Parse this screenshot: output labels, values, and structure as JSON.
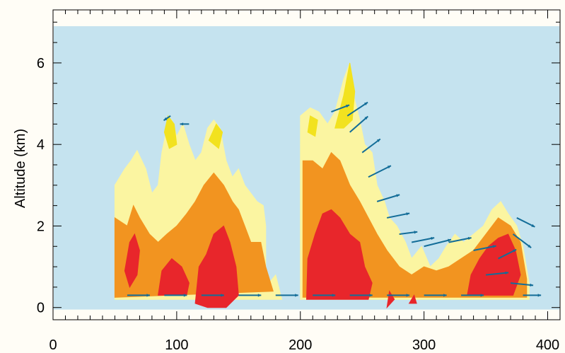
{
  "chart_data": {
    "type": "contour-vector",
    "title": "",
    "xlabel": "",
    "ylabel": "Altitude (km)",
    "xlim": [
      0,
      410
    ],
    "ylim": [
      -0.3,
      7.3
    ],
    "xticks": [
      0,
      100,
      200,
      300,
      400
    ],
    "xtick_labels": [
      "0",
      "100",
      "200",
      "300",
      "400"
    ],
    "yticks": [
      0,
      2,
      4,
      6
    ],
    "ytick_labels": [
      "0",
      "2",
      "4",
      "6"
    ],
    "grid": false,
    "colors": {
      "background": "#c5e3ef",
      "level_1": "#fbf5a1",
      "level_2": "#f2e21f",
      "level_3": "#f29420",
      "level_4": "#e8262b",
      "arrows": "#136d98"
    },
    "contour_regions": [
      {
        "level": "level_1",
        "polygons": [
          [
            [
              50,
              0.2
            ],
            [
              50,
              3.0
            ],
            [
              58,
              3.4
            ],
            [
              63,
              3.6
            ],
            [
              68,
              3.85
            ],
            [
              75,
              3.4
            ],
            [
              80,
              2.8
            ],
            [
              85,
              3.0
            ],
            [
              88,
              3.8
            ],
            [
              92,
              4.4
            ],
            [
              96,
              4.6
            ],
            [
              100,
              4.2
            ],
            [
              105,
              4.5
            ],
            [
              110,
              4.0
            ],
            [
              115,
              3.6
            ],
            [
              120,
              3.8
            ],
            [
              125,
              4.4
            ],
            [
              130,
              4.6
            ],
            [
              135,
              4.4
            ],
            [
              140,
              3.6
            ],
            [
              145,
              3.2
            ],
            [
              150,
              3.4
            ],
            [
              155,
              3.0
            ],
            [
              160,
              2.8
            ],
            [
              165,
              2.6
            ],
            [
              170,
              2.5
            ],
            [
              172,
              2.0
            ],
            [
              172,
              0.5
            ],
            [
              180,
              0.8
            ],
            [
              185,
              0.2
            ]
          ],
          [
            [
              200,
              0.2
            ],
            [
              200,
              4.7
            ],
            [
              208,
              4.9
            ],
            [
              215,
              4.8
            ],
            [
              222,
              4.5
            ],
            [
              228,
              4.8
            ],
            [
              235,
              5.6
            ],
            [
              240,
              6.0
            ],
            [
              243,
              5.2
            ],
            [
              248,
              4.6
            ],
            [
              252,
              4.0
            ],
            [
              258,
              3.8
            ],
            [
              262,
              3.0
            ],
            [
              268,
              2.6
            ],
            [
              272,
              2.2
            ],
            [
              278,
              2.0
            ],
            [
              285,
              1.6
            ],
            [
              290,
              1.2
            ],
            [
              298,
              1.5
            ],
            [
              305,
              1.0
            ],
            [
              312,
              1.2
            ],
            [
              318,
              1.5
            ],
            [
              325,
              1.8
            ],
            [
              332,
              1.6
            ],
            [
              340,
              1.8
            ],
            [
              348,
              2.0
            ],
            [
              355,
              2.4
            ],
            [
              362,
              2.6
            ],
            [
              368,
              2.3
            ],
            [
              375,
              2.0
            ],
            [
              380,
              1.5
            ],
            [
              385,
              0.6
            ],
            [
              385,
              0.2
            ]
          ]
        ]
      },
      {
        "level": "level_2",
        "polygons": [
          [
            [
              90,
              4.3
            ],
            [
              93,
              4.7
            ],
            [
              98,
              4.5
            ],
            [
              100,
              4.0
            ],
            [
              94,
              3.9
            ]
          ],
          [
            [
              126,
              4.1
            ],
            [
              132,
              4.5
            ],
            [
              137,
              4.3
            ],
            [
              134,
              3.9
            ]
          ],
          [
            [
              208,
              4.7
            ],
            [
              214,
              4.6
            ],
            [
              212,
              4.2
            ],
            [
              206,
              4.3
            ]
          ],
          [
            [
              228,
              4.4
            ],
            [
              235,
              5.2
            ],
            [
              240,
              6.0
            ],
            [
              244,
              5.3
            ],
            [
              242,
              4.6
            ],
            [
              235,
              4.4
            ]
          ]
        ]
      },
      {
        "level": "level_3",
        "polygons": [
          [
            [
              50,
              0.25
            ],
            [
              50,
              2.2
            ],
            [
              60,
              2.0
            ],
            [
              65,
              2.5
            ],
            [
              70,
              2.2
            ],
            [
              78,
              1.8
            ],
            [
              85,
              1.6
            ],
            [
              92,
              1.8
            ],
            [
              100,
              2.0
            ],
            [
              108,
              2.3
            ],
            [
              115,
              2.6
            ],
            [
              122,
              3.0
            ],
            [
              130,
              3.3
            ],
            [
              138,
              3.0
            ],
            [
              145,
              2.6
            ],
            [
              150,
              2.4
            ],
            [
              155,
              2.0
            ],
            [
              160,
              1.6
            ],
            [
              168,
              1.6
            ],
            [
              172,
              1.0
            ],
            [
              178,
              0.4
            ]
          ],
          [
            [
              202,
              0.25
            ],
            [
              202,
              3.6
            ],
            [
              210,
              3.6
            ],
            [
              218,
              3.4
            ],
            [
              225,
              3.8
            ],
            [
              232,
              3.6
            ],
            [
              240,
              3.0
            ],
            [
              248,
              2.6
            ],
            [
              255,
              2.2
            ],
            [
              262,
              1.8
            ],
            [
              270,
              1.4
            ],
            [
              280,
              1.0
            ],
            [
              290,
              0.8
            ],
            [
              300,
              1.0
            ],
            [
              310,
              0.9
            ],
            [
              320,
              1.0
            ],
            [
              330,
              1.2
            ],
            [
              340,
              1.4
            ],
            [
              350,
              1.8
            ],
            [
              360,
              2.2
            ],
            [
              370,
              2.0
            ],
            [
              378,
              1.6
            ],
            [
              383,
              0.7
            ],
            [
              383,
              0.25
            ]
          ]
        ]
      },
      {
        "level": "level_4",
        "polygons": [
          [
            [
              58,
              0.9
            ],
            [
              62,
              1.6
            ],
            [
              66,
              1.8
            ],
            [
              70,
              1.4
            ],
            [
              68,
              0.8
            ],
            [
              62,
              0.5
            ]
          ],
          [
            [
              85,
              0.3
            ],
            [
              88,
              0.9
            ],
            [
              96,
              1.2
            ],
            [
              104,
              1.0
            ],
            [
              110,
              0.6
            ],
            [
              108,
              0.3
            ]
          ],
          [
            [
              115,
              0.1
            ],
            [
              118,
              1.0
            ],
            [
              124,
              1.3
            ],
            [
              130,
              1.8
            ],
            [
              138,
              2.0
            ],
            [
              143,
              1.6
            ],
            [
              148,
              1.0
            ],
            [
              150,
              0.3
            ],
            [
              140,
              0.0
            ],
            [
              125,
              0.0
            ]
          ],
          [
            [
              205,
              0.2
            ],
            [
              206,
              1.2
            ],
            [
              212,
              1.8
            ],
            [
              218,
              2.3
            ],
            [
              225,
              2.4
            ],
            [
              232,
              2.2
            ],
            [
              240,
              1.8
            ],
            [
              248,
              1.6
            ],
            [
              252,
              1.0
            ],
            [
              258,
              0.6
            ],
            [
              255,
              0.2
            ]
          ],
          [
            [
              335,
              0.3
            ],
            [
              338,
              0.8
            ],
            [
              345,
              1.2
            ],
            [
              352,
              1.5
            ],
            [
              360,
              1.7
            ],
            [
              368,
              1.8
            ],
            [
              374,
              1.4
            ],
            [
              378,
              0.8
            ],
            [
              372,
              0.3
            ]
          ],
          [
            [
              270,
              0.0
            ],
            [
              272,
              0.4
            ],
            [
              276,
              0.2
            ]
          ],
          [
            [
              288,
              0.1
            ],
            [
              292,
              0.3
            ],
            [
              294,
              0.1
            ]
          ]
        ]
      }
    ],
    "vectors": [
      {
        "x": 95,
        "y": 4.7,
        "u": -3,
        "v": -0.2
      },
      {
        "x": 110,
        "y": 4.5,
        "u": -4,
        "v": 0
      },
      {
        "x": 225,
        "y": 4.8,
        "u": 8,
        "v": 0.3
      },
      {
        "x": 238,
        "y": 4.7,
        "u": 9,
        "v": 0.6
      },
      {
        "x": 240,
        "y": 4.3,
        "u": 8,
        "v": 0.7
      },
      {
        "x": 250,
        "y": 3.8,
        "u": 8,
        "v": 0.6
      },
      {
        "x": 255,
        "y": 3.2,
        "u": 10,
        "v": 0.5
      },
      {
        "x": 262,
        "y": 2.6,
        "u": 10,
        "v": 0.3
      },
      {
        "x": 270,
        "y": 2.2,
        "u": 10,
        "v": 0.2
      },
      {
        "x": 280,
        "y": 1.8,
        "u": 8,
        "v": 0.1
      },
      {
        "x": 290,
        "y": 1.6,
        "u": 10,
        "v": 0.2
      },
      {
        "x": 300,
        "y": 1.5,
        "u": 12,
        "v": 0.3
      },
      {
        "x": 320,
        "y": 1.6,
        "u": 10,
        "v": 0.2
      },
      {
        "x": 340,
        "y": 1.4,
        "u": 10,
        "v": 0.2
      },
      {
        "x": 360,
        "y": 1.2,
        "u": 8,
        "v": 0.4
      },
      {
        "x": 372,
        "y": 1.8,
        "u": 8,
        "v": -0.6
      },
      {
        "x": 375,
        "y": 2.2,
        "u": 8,
        "v": -0.4
      },
      {
        "x": 350,
        "y": 0.8,
        "u": 10,
        "v": 0.1
      },
      {
        "x": 370,
        "y": 0.6,
        "u": 10,
        "v": -0.1
      },
      {
        "x": 380,
        "y": 0.3,
        "u": 8,
        "v": 0
      },
      {
        "x": 60,
        "y": 0.3,
        "u": 10,
        "v": 0
      },
      {
        "x": 90,
        "y": 0.3,
        "u": 10,
        "v": 0
      },
      {
        "x": 120,
        "y": 0.3,
        "u": 10,
        "v": 0
      },
      {
        "x": 150,
        "y": 0.3,
        "u": 10,
        "v": 0
      },
      {
        "x": 180,
        "y": 0.3,
        "u": 10,
        "v": 0
      },
      {
        "x": 210,
        "y": 0.3,
        "u": 10,
        "v": 0
      },
      {
        "x": 240,
        "y": 0.3,
        "u": 10,
        "v": 0
      },
      {
        "x": 270,
        "y": 0.3,
        "u": 10,
        "v": 0
      },
      {
        "x": 300,
        "y": 0.3,
        "u": 10,
        "v": 0
      },
      {
        "x": 330,
        "y": 0.3,
        "u": 10,
        "v": 0
      }
    ]
  }
}
